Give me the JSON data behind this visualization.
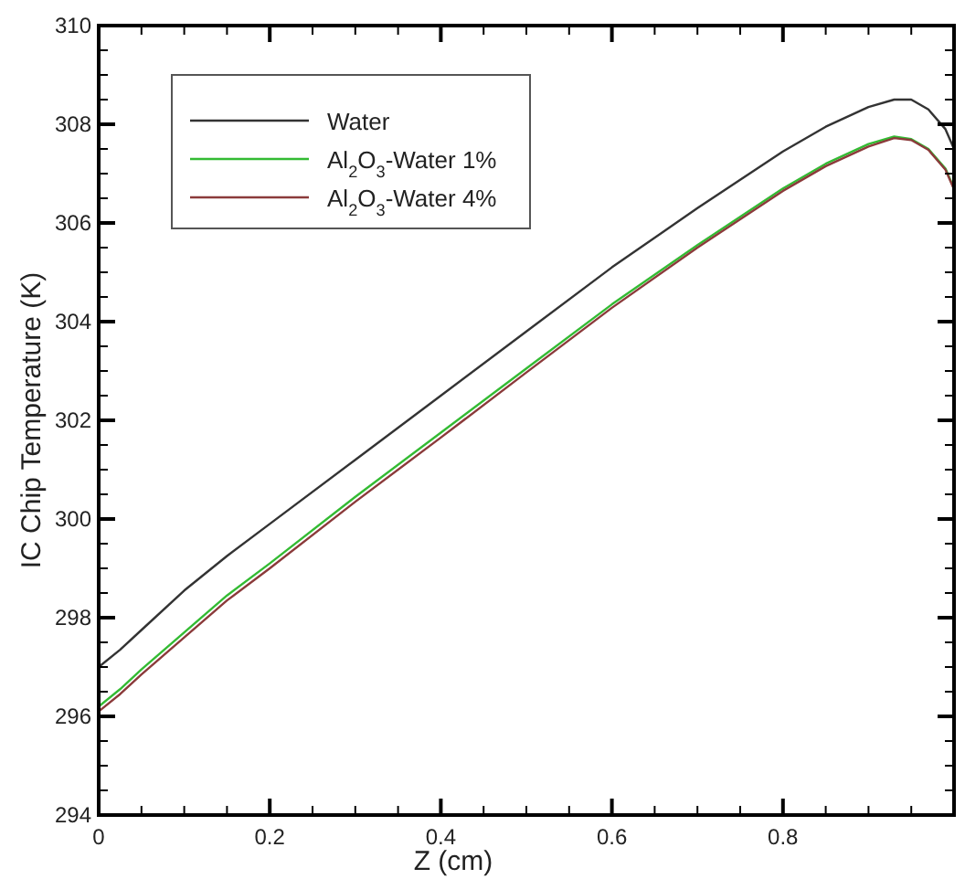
{
  "chart_data": {
    "type": "line",
    "xlabel": "Z (cm)",
    "ylabel": "IC Chip Temperature (K)",
    "xlim": [
      0,
      1
    ],
    "ylim": [
      294,
      310
    ],
    "xticks": [
      0,
      {
        "value": 0.05,
        "label": null
      },
      {
        "value": 0.1,
        "label": null
      },
      {
        "value": 0.15,
        "label": null
      },
      0.2,
      {
        "value": 0.25,
        "label": null
      },
      {
        "value": 0.3,
        "label": null
      },
      {
        "value": 0.35,
        "label": null
      },
      0.4,
      {
        "value": 0.45,
        "label": null
      },
      {
        "value": 0.5,
        "label": null
      },
      {
        "value": 0.55,
        "label": null
      },
      0.6,
      {
        "value": 0.65,
        "label": null
      },
      {
        "value": 0.7,
        "label": null
      },
      {
        "value": 0.75,
        "label": null
      },
      0.8,
      {
        "value": 0.85,
        "label": null
      },
      {
        "value": 0.9,
        "label": null
      },
      {
        "value": 0.95,
        "label": null
      }
    ],
    "yticks": [
      294,
      {
        "value": 294.5,
        "label": null
      },
      {
        "value": 295,
        "label": null
      },
      {
        "value": 295.5,
        "label": null
      },
      296,
      {
        "value": 296.5,
        "label": null
      },
      {
        "value": 297,
        "label": null
      },
      {
        "value": 297.5,
        "label": null
      },
      298,
      {
        "value": 298.5,
        "label": null
      },
      {
        "value": 299,
        "label": null
      },
      {
        "value": 299.5,
        "label": null
      },
      300,
      {
        "value": 300.5,
        "label": null
      },
      {
        "value": 301,
        "label": null
      },
      {
        "value": 301.5,
        "label": null
      },
      302,
      {
        "value": 302.5,
        "label": null
      },
      {
        "value": 303,
        "label": null
      },
      {
        "value": 303.5,
        "label": null
      },
      304,
      {
        "value": 304.5,
        "label": null
      },
      {
        "value": 305,
        "label": null
      },
      {
        "value": 305.5,
        "label": null
      },
      306,
      {
        "value": 306.5,
        "label": null
      },
      {
        "value": 307,
        "label": null
      },
      {
        "value": 307.5,
        "label": null
      },
      308,
      {
        "value": 308.5,
        "label": null
      },
      {
        "value": 309,
        "label": null
      },
      {
        "value": 309.5,
        "label": null
      },
      310
    ],
    "x": [
      0,
      0.025,
      0.05,
      0.1,
      0.15,
      0.2,
      0.3,
      0.4,
      0.5,
      0.6,
      0.7,
      0.8,
      0.85,
      0.9,
      0.93,
      0.95,
      0.97,
      0.99,
      1.0
    ],
    "legend": "top left",
    "grid": false,
    "marker": "none",
    "line_style": "solid",
    "series": [
      {
        "name": "Water",
        "color": "#333333",
        "values": [
          297.0,
          297.35,
          297.75,
          298.55,
          299.25,
          299.9,
          301.2,
          302.5,
          303.8,
          305.1,
          306.3,
          307.45,
          307.95,
          308.35,
          308.5,
          308.5,
          308.3,
          307.9,
          307.5
        ]
      },
      {
        "name": "Al$_{2}$O$_{3}$-Water 1%",
        "color": "#33bb33",
        "values": [
          296.2,
          296.55,
          296.95,
          297.7,
          298.45,
          299.1,
          300.45,
          301.75,
          303.05,
          304.35,
          305.55,
          306.7,
          307.2,
          307.6,
          307.75,
          307.7,
          307.5,
          307.1,
          306.7
        ]
      },
      {
        "name": "Al$_{2}$O$_{3}$-Water 4%",
        "color": "#8b3a3a",
        "values": [
          296.1,
          296.45,
          296.85,
          297.6,
          298.35,
          299.0,
          300.35,
          301.65,
          302.97,
          304.28,
          305.5,
          306.65,
          307.15,
          307.55,
          307.72,
          307.68,
          307.48,
          307.08,
          306.68
        ]
      }
    ]
  }
}
